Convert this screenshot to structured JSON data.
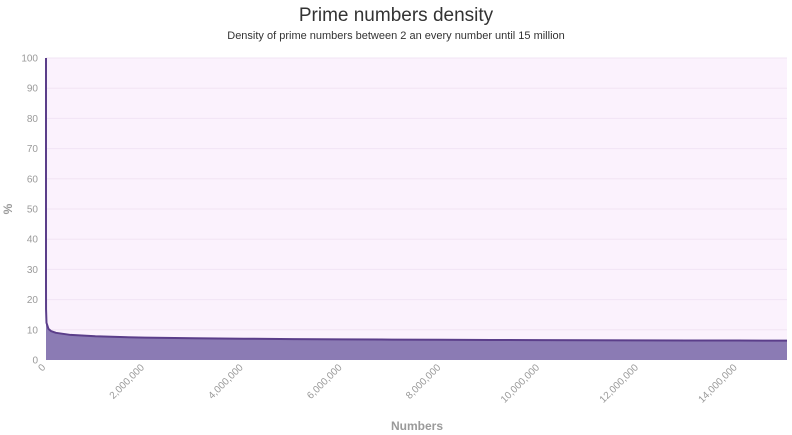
{
  "chart_data": {
    "type": "area",
    "title": "Prime numbers density",
    "subtitle": "Density of prime numbers between 2 an every number until 15 million",
    "xlabel": "Numbers",
    "ylabel": "%",
    "xlim": [
      0,
      15000000
    ],
    "ylim": [
      0,
      100
    ],
    "y_ticks": [
      0,
      10,
      20,
      30,
      40,
      50,
      60,
      70,
      80,
      90,
      100
    ],
    "y_tick_labels": [
      "0",
      "10",
      "20",
      "30",
      "40",
      "50",
      "60",
      "70",
      "80",
      "90",
      "100"
    ],
    "x_ticks": [
      0,
      2000000,
      4000000,
      6000000,
      8000000,
      10000000,
      12000000,
      14000000
    ],
    "x_tick_labels": [
      "0",
      "2,000,000",
      "4,000,000",
      "6,000,000",
      "8,000,000",
      "10,000,000",
      "12,000,000",
      "14,000,000"
    ],
    "grid": true,
    "legend": "none",
    "colors": {
      "plot_background": "#fbf2fd",
      "area_fill": "#8b7bb4",
      "line": "#5b3e8a",
      "grid": "#f1e4f4"
    },
    "series": [
      {
        "x": [
          2,
          10,
          100,
          1000,
          10000,
          50000,
          100000,
          200000,
          500000,
          1000000,
          1500000,
          2000000,
          3000000,
          4000000,
          5000000,
          6000000,
          7000000,
          8000000,
          9000000,
          10000000,
          11000000,
          12000000,
          13000000,
          14000000,
          15000000
        ],
        "values": [
          100,
          40,
          25,
          16.8,
          12.3,
          10.3,
          9.6,
          9.0,
          8.3,
          7.85,
          7.6,
          7.4,
          7.2,
          7.05,
          6.93,
          6.84,
          6.76,
          6.7,
          6.64,
          6.6,
          6.55,
          6.51,
          6.47,
          6.44,
          6.41
        ]
      }
    ]
  }
}
